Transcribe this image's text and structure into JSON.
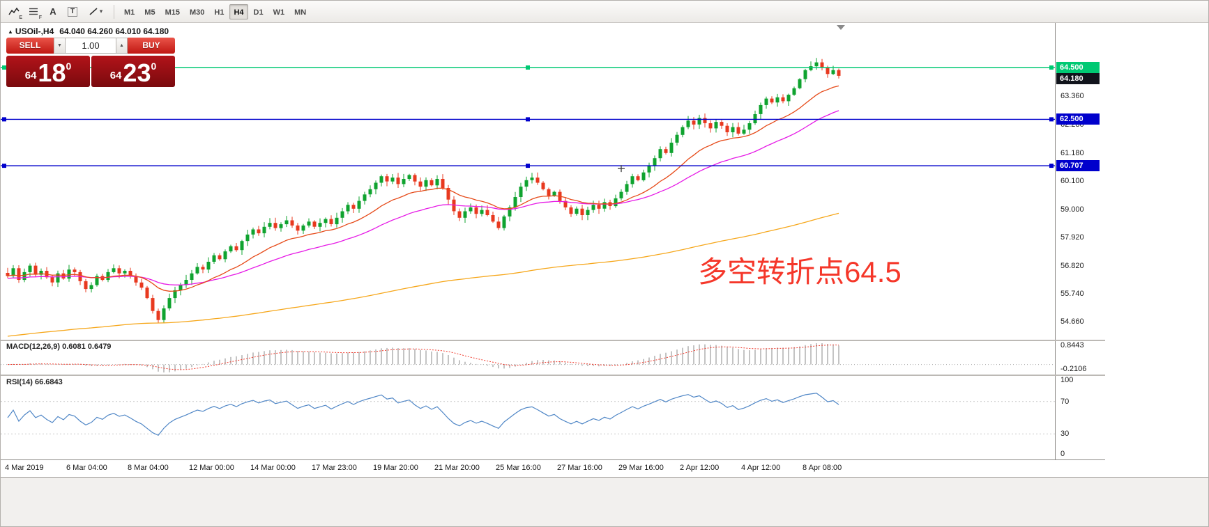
{
  "toolbar": {
    "timeframes": [
      "M1",
      "M5",
      "M15",
      "M30",
      "H1",
      "H4",
      "D1",
      "W1",
      "MN"
    ],
    "active_timeframe": "H4"
  },
  "glyphs": {
    "letter_a": "A",
    "letter_t": "T",
    "sub_e": "E",
    "sub_f": "F",
    "caret_down": "▾",
    "spin_up": "▲",
    "spin_down": "▼",
    "title_marker": "▲"
  },
  "chart_header": {
    "symbol_period": "USOil-,H4",
    "ohlc": "64.040 64.260 64.010 64.180"
  },
  "trade_panel": {
    "sell_label": "SELL",
    "buy_label": "BUY",
    "volume": "1.00",
    "sell_small": "64",
    "sell_big": "18",
    "sell_sup": "0",
    "buy_small": "64",
    "buy_big": "23",
    "buy_sup": "0"
  },
  "annotation": {
    "text": "多空转折点64.5",
    "color": "#f5372a"
  },
  "price_scale": {
    "labels": [
      "63.360",
      "62.280",
      "61.180",
      "60.100",
      "59.000",
      "57.920",
      "56.820",
      "55.740",
      "54.660"
    ],
    "tags": [
      {
        "text": "64.500",
        "price": 64.5,
        "bg": "#00c973",
        "fg": "#ffffff",
        "interactable": true
      },
      {
        "text": "64.180",
        "price": 64.18,
        "bg": "#11141c",
        "fg": "#ffffff",
        "interactable": false
      },
      {
        "text": "62.500",
        "price": 62.5,
        "bg": "#0000cc",
        "fg": "#ffffff",
        "interactable": true
      },
      {
        "text": "60.707",
        "price": 60.707,
        "bg": "#0000cc",
        "fg": "#ffffff",
        "interactable": true
      }
    ]
  },
  "panes": {
    "macd": {
      "label": "MACD(12,26,9) 0.6081 0.6479",
      "scale_top": "0.8443",
      "scale_bottom": "-0.2106"
    },
    "rsi": {
      "label": "RSI(14) 66.6843",
      "levels": [
        {
          "text": "100",
          "value": 100
        },
        {
          "text": "70",
          "value": 70
        },
        {
          "text": "30",
          "value": 30
        },
        {
          "text": "0",
          "value": 0
        }
      ]
    }
  },
  "chart_data": {
    "type": "candlestick",
    "symbol": "USOil-",
    "timeframe": "H4",
    "title": "USOil-,H4",
    "ohlc_current": {
      "open": 64.04,
      "high": 64.26,
      "low": 64.01,
      "close": 64.18
    },
    "ylim": [
      54.0,
      66.3
    ],
    "price_axis_ticks": [
      63.36,
      62.28,
      61.18,
      60.1,
      59.0,
      57.92,
      56.82,
      55.74,
      54.66
    ],
    "closes": [
      56.45,
      56.75,
      56.3,
      56.6,
      56.85,
      56.5,
      56.65,
      56.4,
      56.2,
      56.55,
      56.35,
      56.7,
      56.6,
      56.25,
      55.95,
      56.1,
      56.45,
      56.3,
      56.6,
      56.75,
      56.55,
      56.65,
      56.45,
      56.2,
      56.0,
      55.6,
      55.1,
      54.75,
      55.2,
      55.6,
      55.9,
      56.1,
      56.3,
      56.55,
      56.8,
      56.7,
      57.0,
      57.25,
      57.1,
      57.4,
      57.6,
      57.45,
      57.8,
      58.05,
      58.25,
      58.1,
      58.35,
      58.5,
      58.3,
      58.45,
      58.6,
      58.4,
      58.2,
      58.4,
      58.55,
      58.35,
      58.5,
      58.65,
      58.45,
      58.7,
      58.95,
      59.2,
      59.05,
      59.35,
      59.6,
      59.8,
      60.05,
      60.3,
      60.1,
      60.25,
      60.0,
      60.2,
      60.35,
      60.1,
      59.9,
      60.15,
      59.95,
      60.2,
      59.85,
      59.4,
      58.95,
      58.7,
      58.95,
      59.1,
      58.85,
      59.0,
      58.8,
      58.55,
      58.3,
      58.75,
      59.1,
      59.5,
      59.9,
      60.15,
      60.25,
      60.05,
      59.8,
      59.55,
      59.7,
      59.35,
      59.1,
      58.85,
      59.05,
      58.8,
      59.0,
      59.2,
      59.05,
      59.3,
      59.15,
      59.45,
      59.7,
      60.0,
      60.3,
      60.15,
      60.45,
      60.7,
      61.0,
      61.35,
      61.2,
      61.6,
      61.9,
      62.2,
      62.45,
      62.3,
      62.55,
      62.35,
      62.15,
      62.4,
      62.25,
      62.0,
      62.2,
      61.95,
      62.1,
      62.35,
      62.7,
      63.05,
      63.3,
      63.15,
      63.35,
      63.2,
      63.45,
      63.7,
      64.05,
      64.4,
      64.55,
      64.7,
      64.5,
      64.25,
      64.4,
      64.18
    ],
    "candle_colors": {
      "up": "#0fa32f",
      "down": "#e8391f"
    },
    "moving_averages": [
      {
        "name": "fast-ma",
        "color": "#e64a19",
        "period": 16
      },
      {
        "name": "mid-ma",
        "color": "#e61ae6",
        "period": 35,
        "seed": 56.35
      },
      {
        "name": "slow-ma",
        "color": "#f6a71b",
        "period": 200,
        "seed": 54.1
      }
    ],
    "hlines": [
      {
        "price": 64.5,
        "color": "#00c973",
        "label": "64.500"
      },
      {
        "price": 62.5,
        "color": "#0000cc",
        "label": "62.500"
      },
      {
        "price": 60.707,
        "color": "#0000cc",
        "label": "60.707"
      }
    ],
    "bid": {
      "price": 64.18,
      "label": "64.180"
    },
    "markers": [
      {
        "type": "plus",
        "index": 110,
        "price": 60.6
      }
    ],
    "indicators": {
      "macd": {
        "fast": 12,
        "slow": 26,
        "signal": 9,
        "current": [
          0.6081,
          0.6479
        ],
        "hist_color": "#b5b5b5",
        "signal_color": "#f0392b",
        "scale": [
          0.8443,
          -0.2106
        ]
      },
      "rsi": {
        "period": 14,
        "current": 66.6843,
        "color": "#4f86c6",
        "levels": [
          70,
          30
        ],
        "scale": [
          100,
          70,
          30,
          0
        ]
      }
    },
    "time_labels": [
      "4 Mar 2019",
      "6 Mar 04:00",
      "8 Mar 04:00",
      "12 Mar 00:00",
      "14 Mar 00:00",
      "17 Mar 23:00",
      "19 Mar 20:00",
      "21 Mar 20:00",
      "25 Mar 16:00",
      "27 Mar 16:00",
      "29 Mar 16:00",
      "2 Apr 12:00",
      "4 Apr 12:00",
      "8 Apr 08:00"
    ]
  }
}
